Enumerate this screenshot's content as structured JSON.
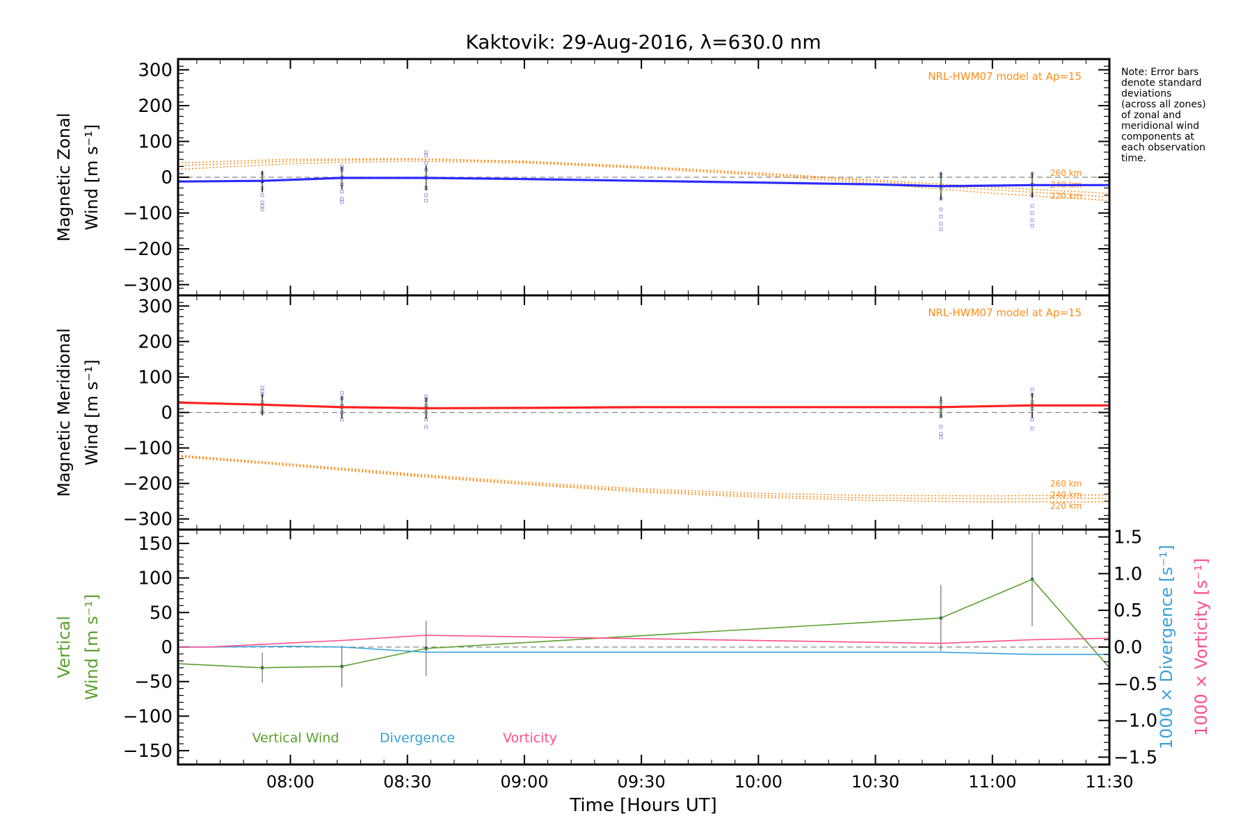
{
  "title": "Kaktovik: 29-Aug-2016, λ=630.0 nm",
  "note_lines": [
    "Note: Error bars",
    "denote standard",
    "deviations",
    "(across all zones)",
    "of zonal and",
    "meridional wind",
    "components at",
    "each observation",
    "time."
  ],
  "x_axis": {
    "label": "Time [Hours UT]",
    "ticks": [
      "08:00",
      "08:30",
      "09:00",
      "09:30",
      "10:00",
      "10:30",
      "11:00",
      "11:30"
    ],
    "tick_hours": [
      8.0,
      8.5,
      9.0,
      9.5,
      10.0,
      10.5,
      11.0,
      11.5
    ],
    "range_hours": [
      7.52,
      11.5
    ]
  },
  "colors": {
    "zonal": "#2b2bff",
    "meridional": "#ff2020",
    "model": "#ff8c1a",
    "vertical": "#5aa02c",
    "divergence": "#3aa0d8",
    "vorticity": "#ff4d8d",
    "errorbar": "#333333",
    "zone_points": "#9a9ae0"
  },
  "chart_data": [
    {
      "type": "line",
      "panel": "zonal",
      "ylabel_line1": "Magnetic Zonal",
      "ylabel_line2": "Wind [m s⁻¹]",
      "ylim": [
        -330,
        330
      ],
      "yticks": [
        300,
        200,
        100,
        0,
        -100,
        -200,
        -300
      ],
      "model_label": "NRL-HWM07 model at Ap=15",
      "model_series": [
        {
          "name": "260 km",
          "x": [
            7.52,
            8.0,
            8.5,
            9.0,
            9.5,
            10.0,
            10.5,
            11.0,
            11.5
          ],
          "values": [
            40,
            50,
            52,
            45,
            30,
            12,
            -8,
            -28,
            -45
          ]
        },
        {
          "name": "240 km",
          "x": [
            7.52,
            8.0,
            8.5,
            9.0,
            9.5,
            10.0,
            10.5,
            11.0,
            11.5
          ],
          "values": [
            32,
            45,
            50,
            43,
            28,
            10,
            -12,
            -35,
            -55
          ]
        },
        {
          "name": "220 km",
          "x": [
            7.52,
            8.0,
            8.5,
            9.0,
            9.5,
            10.0,
            10.5,
            11.0,
            11.5
          ],
          "values": [
            22,
            38,
            45,
            40,
            25,
            6,
            -18,
            -45,
            -65
          ]
        }
      ],
      "series": [
        {
          "name": "",
          "x": [
            7.52,
            7.88,
            8.22,
            8.58,
            9.0,
            9.5,
            10.0,
            10.5,
            10.78,
            11.17,
            11.5
          ],
          "values": [
            -12,
            -10,
            -2,
            -2,
            -5,
            -10,
            -15,
            -20,
            -25,
            -22,
            -22
          ]
        }
      ],
      "observations": [
        {
          "x": 7.88,
          "y": -12,
          "err": 30,
          "zones": [
            -90,
            -80,
            -70,
            -50,
            -30,
            -10,
            10
          ]
        },
        {
          "x": 8.22,
          "y": -2,
          "err": 32,
          "zones": [
            -70,
            -60,
            -40,
            -20,
            0,
            20,
            30
          ]
        },
        {
          "x": 8.58,
          "y": -2,
          "err": 35,
          "zones": [
            -65,
            -50,
            -30,
            0,
            20,
            40,
            60,
            70
          ]
        },
        {
          "x": 10.78,
          "y": -25,
          "err": 38,
          "zones": [
            -145,
            -130,
            -110,
            -90,
            -60,
            -30,
            10
          ]
        },
        {
          "x": 11.17,
          "y": -22,
          "err": 35,
          "zones": [
            -135,
            -120,
            -100,
            -80,
            -50,
            -20,
            10
          ]
        }
      ]
    },
    {
      "type": "line",
      "panel": "meridional",
      "ylabel_line1": "Magnetic Meridional",
      "ylabel_line2": "Wind [m s⁻¹]",
      "ylim": [
        -330,
        330
      ],
      "yticks": [
        300,
        200,
        100,
        0,
        -100,
        -200,
        -300
      ],
      "model_label": "NRL-HWM07 model at Ap=15",
      "model_series": [
        {
          "name": "260 km",
          "x": [
            7.52,
            8.0,
            8.5,
            9.0,
            9.5,
            10.0,
            10.5,
            11.0,
            11.5
          ],
          "values": [
            -120,
            -145,
            -172,
            -196,
            -215,
            -228,
            -234,
            -235,
            -232
          ]
        },
        {
          "name": "240 km",
          "x": [
            7.52,
            8.0,
            8.5,
            9.0,
            9.5,
            10.0,
            10.5,
            11.0,
            11.5
          ],
          "values": [
            -122,
            -147,
            -175,
            -200,
            -220,
            -234,
            -241,
            -243,
            -242
          ]
        },
        {
          "name": "220 km",
          "x": [
            7.52,
            8.0,
            8.5,
            9.0,
            9.5,
            10.0,
            10.5,
            11.0,
            11.5
          ],
          "values": [
            -125,
            -150,
            -178,
            -203,
            -224,
            -239,
            -248,
            -252,
            -252
          ]
        }
      ],
      "series": [
        {
          "name": "",
          "x": [
            7.52,
            7.88,
            8.22,
            8.58,
            9.0,
            9.5,
            10.0,
            10.5,
            10.78,
            11.17,
            11.5
          ],
          "values": [
            28,
            22,
            15,
            12,
            13,
            15,
            15,
            15,
            15,
            20,
            20
          ]
        }
      ],
      "observations": [
        {
          "x": 7.88,
          "y": 22,
          "err": 30,
          "zones": [
            0,
            10,
            30,
            50,
            60,
            70
          ]
        },
        {
          "x": 8.22,
          "y": 15,
          "err": 32,
          "zones": [
            -20,
            0,
            20,
            40,
            55
          ]
        },
        {
          "x": 8.58,
          "y": 12,
          "err": 30,
          "zones": [
            -40,
            -20,
            0,
            20,
            35,
            45
          ]
        },
        {
          "x": 10.78,
          "y": 15,
          "err": 30,
          "zones": [
            -70,
            -60,
            -40,
            -10,
            10,
            30
          ]
        },
        {
          "x": 11.17,
          "y": 20,
          "err": 35,
          "zones": [
            -45,
            -20,
            10,
            30,
            50,
            65
          ]
        }
      ]
    },
    {
      "type": "line",
      "panel": "vertical",
      "ylabel_line1": "Vertical",
      "ylabel_line2": "Wind [m s⁻¹]",
      "ylim": [
        -170,
        170
      ],
      "yticks": [
        150,
        100,
        50,
        0,
        -50,
        -100,
        -150
      ],
      "y2label_div": "1000 × Divergence [s⁻¹]",
      "y2label_vort": "1000 × Vorticity [s⁻¹]",
      "y2lim": [
        -1.6,
        1.6
      ],
      "y2ticks": [
        1.5,
        1.0,
        0.5,
        0.0,
        -0.5,
        -1.0,
        -1.5
      ],
      "y2ticklabels": [
        "1.5",
        "1.0",
        "0.5",
        "0.0",
        "−0.5",
        "−1.0",
        "−1.5"
      ],
      "legend": [
        "Vertical Wind",
        "Divergence",
        "Vorticity"
      ],
      "series": [
        {
          "name": "Vertical Wind",
          "axis": "left",
          "x": [
            7.52,
            7.88,
            8.22,
            8.58,
            10.78,
            11.17,
            11.5
          ],
          "values": [
            -24,
            -30,
            -28,
            -2,
            42,
            98,
            -30
          ]
        },
        {
          "name": "Divergence",
          "axis": "right",
          "x": [
            7.52,
            7.65,
            8.0,
            8.22,
            8.58,
            10.78,
            11.17,
            11.5
          ],
          "values": [
            0.0,
            0.0,
            0.01,
            0.0,
            -0.07,
            -0.07,
            -0.1,
            -0.1
          ]
        },
        {
          "name": "Vorticity",
          "axis": "right",
          "x": [
            7.52,
            7.65,
            8.22,
            8.58,
            10.78,
            11.17,
            11.5
          ],
          "values": [
            0.0,
            0.0,
            0.09,
            0.16,
            0.05,
            0.1,
            0.12
          ]
        }
      ],
      "observations": [
        {
          "x": 7.88,
          "y": -30,
          "err": 22
        },
        {
          "x": 8.22,
          "y": -28,
          "err": 30
        },
        {
          "x": 8.58,
          "y": -2,
          "err": 40
        },
        {
          "x": 10.78,
          "y": 42,
          "err": 48
        },
        {
          "x": 11.17,
          "y": 98,
          "err": 68
        }
      ]
    }
  ]
}
